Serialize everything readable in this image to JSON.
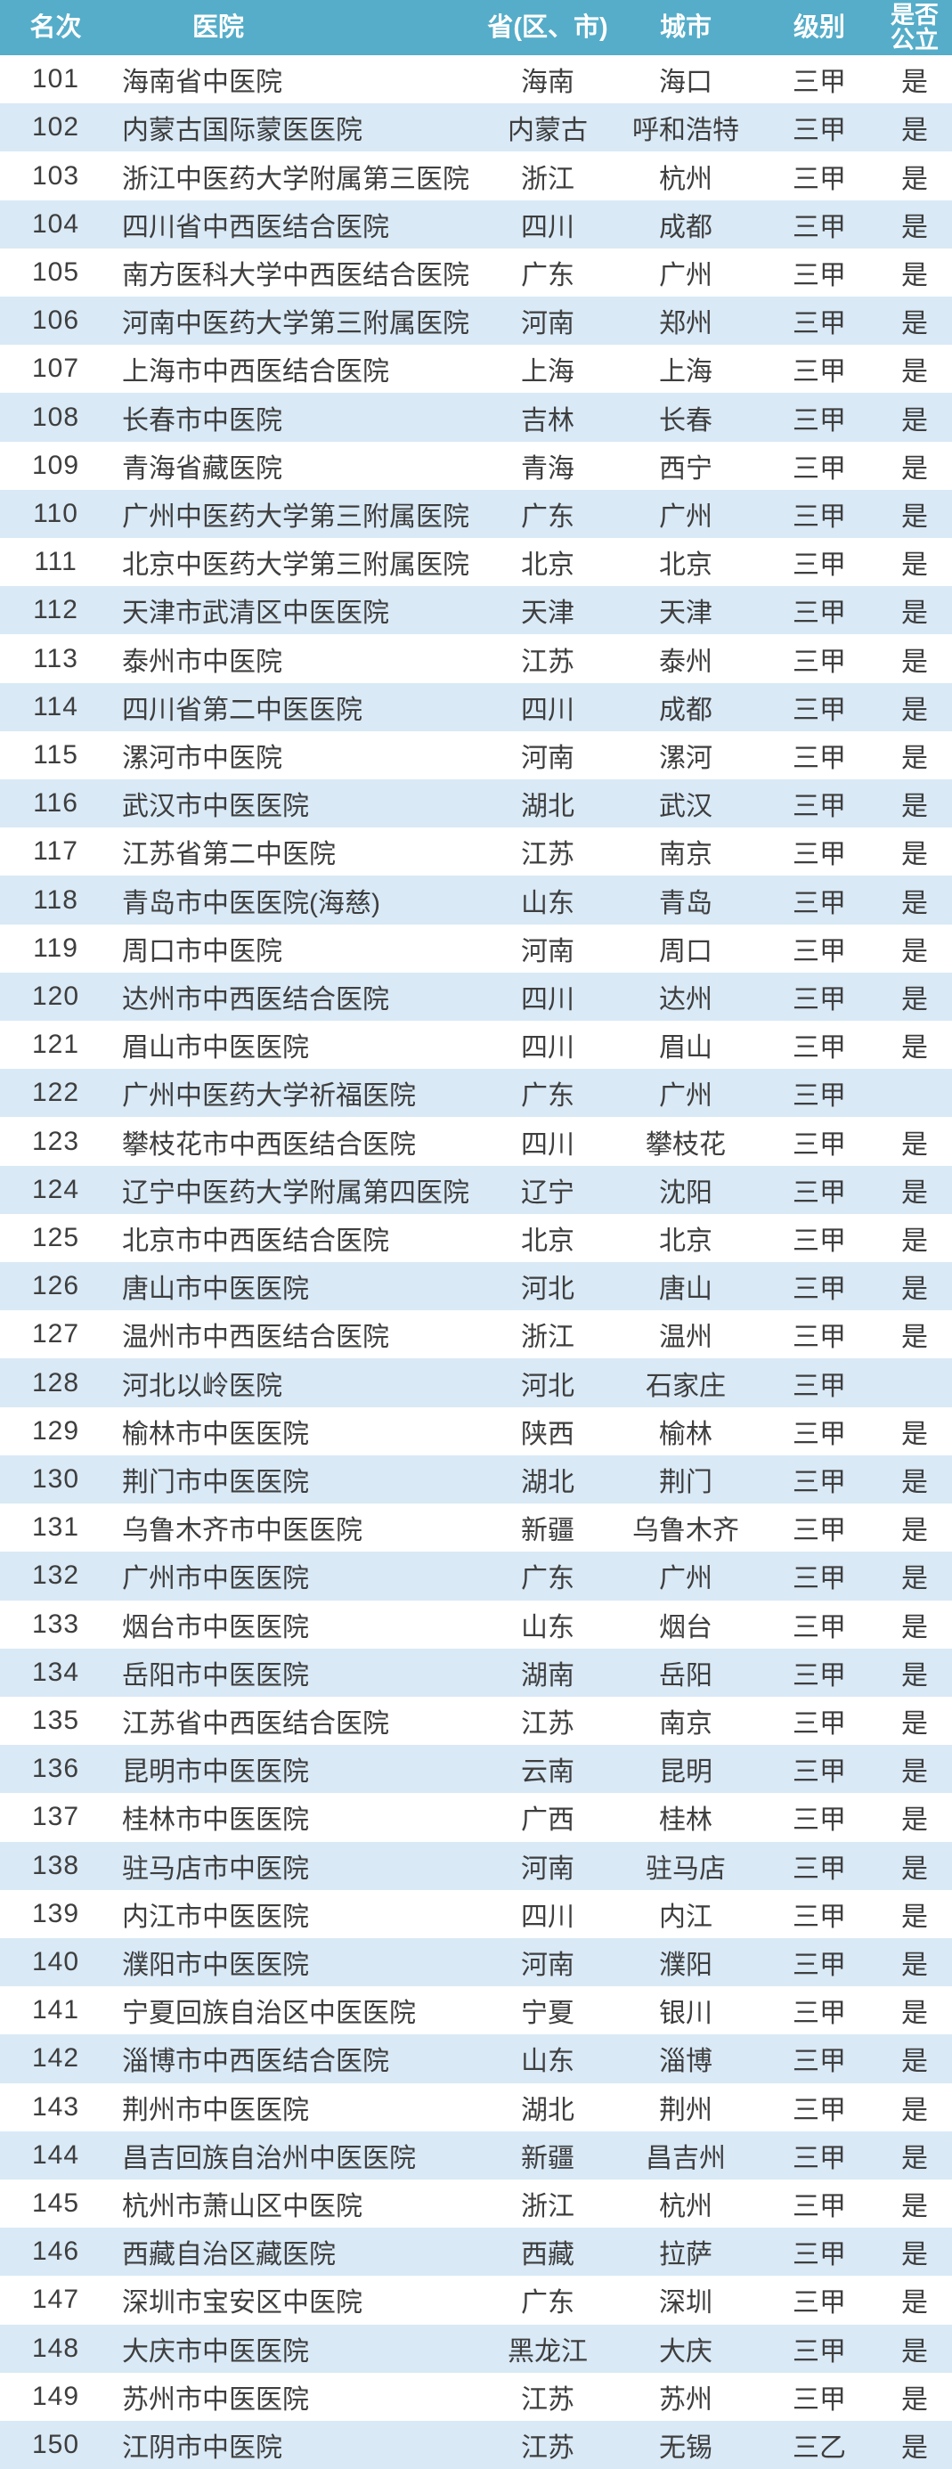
{
  "colors": {
    "header_bg": "#55adc9",
    "stripe_blue": "#d9e9f6",
    "row_white": "#ffffff",
    "header_text": "#ffffff",
    "body_text": "#3e3e3e"
  },
  "table": {
    "columns": [
      {
        "key": "rank",
        "label": "名次"
      },
      {
        "key": "hospital",
        "label": "医院"
      },
      {
        "key": "province",
        "label": "省(区、市)"
      },
      {
        "key": "city",
        "label": "城市"
      },
      {
        "key": "level",
        "label": "级别"
      },
      {
        "key": "public",
        "label": "是否公立"
      }
    ],
    "rows": [
      [
        "101",
        "海南省中医院",
        "海南",
        "海口",
        "三甲",
        "是"
      ],
      [
        "102",
        "内蒙古国际蒙医医院",
        "内蒙古",
        "呼和浩特",
        "三甲",
        "是"
      ],
      [
        "103",
        "浙江中医药大学附属第三医院",
        "浙江",
        "杭州",
        "三甲",
        "是"
      ],
      [
        "104",
        "四川省中西医结合医院",
        "四川",
        "成都",
        "三甲",
        "是"
      ],
      [
        "105",
        "南方医科大学中西医结合医院",
        "广东",
        "广州",
        "三甲",
        "是"
      ],
      [
        "106",
        "河南中医药大学第三附属医院",
        "河南",
        "郑州",
        "三甲",
        "是"
      ],
      [
        "107",
        "上海市中西医结合医院",
        "上海",
        "上海",
        "三甲",
        "是"
      ],
      [
        "108",
        "长春市中医院",
        "吉林",
        "长春",
        "三甲",
        "是"
      ],
      [
        "109",
        "青海省藏医院",
        "青海",
        "西宁",
        "三甲",
        "是"
      ],
      [
        "110",
        "广州中医药大学第三附属医院",
        "广东",
        "广州",
        "三甲",
        "是"
      ],
      [
        "111",
        "北京中医药大学第三附属医院",
        "北京",
        "北京",
        "三甲",
        "是"
      ],
      [
        "112",
        "天津市武清区中医医院",
        "天津",
        "天津",
        "三甲",
        "是"
      ],
      [
        "113",
        "泰州市中医院",
        "江苏",
        "泰州",
        "三甲",
        "是"
      ],
      [
        "114",
        "四川省第二中医医院",
        "四川",
        "成都",
        "三甲",
        "是"
      ],
      [
        "115",
        "漯河市中医院",
        "河南",
        "漯河",
        "三甲",
        "是"
      ],
      [
        "116",
        "武汉市中医医院",
        "湖北",
        "武汉",
        "三甲",
        "是"
      ],
      [
        "117",
        "江苏省第二中医院",
        "江苏",
        "南京",
        "三甲",
        "是"
      ],
      [
        "118",
        "青岛市中医医院(海慈)",
        "山东",
        "青岛",
        "三甲",
        "是"
      ],
      [
        "119",
        "周口市中医院",
        "河南",
        "周口",
        "三甲",
        "是"
      ],
      [
        "120",
        "达州市中西医结合医院",
        "四川",
        "达州",
        "三甲",
        "是"
      ],
      [
        "121",
        "眉山市中医医院",
        "四川",
        "眉山",
        "三甲",
        "是"
      ],
      [
        "122",
        "广州中医药大学祈福医院",
        "广东",
        "广州",
        "三甲",
        ""
      ],
      [
        "123",
        "攀枝花市中西医结合医院",
        "四川",
        "攀枝花",
        "三甲",
        "是"
      ],
      [
        "124",
        "辽宁中医药大学附属第四医院",
        "辽宁",
        "沈阳",
        "三甲",
        "是"
      ],
      [
        "125",
        "北京市中西医结合医院",
        "北京",
        "北京",
        "三甲",
        "是"
      ],
      [
        "126",
        "唐山市中医医院",
        "河北",
        "唐山",
        "三甲",
        "是"
      ],
      [
        "127",
        "温州市中西医结合医院",
        "浙江",
        "温州",
        "三甲",
        "是"
      ],
      [
        "128",
        "河北以岭医院",
        "河北",
        "石家庄",
        "三甲",
        ""
      ],
      [
        "129",
        "榆林市中医医院",
        "陕西",
        "榆林",
        "三甲",
        "是"
      ],
      [
        "130",
        "荆门市中医医院",
        "湖北",
        "荆门",
        "三甲",
        "是"
      ],
      [
        "131",
        "乌鲁木齐市中医医院",
        "新疆",
        "乌鲁木齐",
        "三甲",
        "是"
      ],
      [
        "132",
        "广州市中医医院",
        "广东",
        "广州",
        "三甲",
        "是"
      ],
      [
        "133",
        "烟台市中医医院",
        "山东",
        "烟台",
        "三甲",
        "是"
      ],
      [
        "134",
        "岳阳市中医医院",
        "湖南",
        "岳阳",
        "三甲",
        "是"
      ],
      [
        "135",
        "江苏省中西医结合医院",
        "江苏",
        "南京",
        "三甲",
        "是"
      ],
      [
        "136",
        "昆明市中医医院",
        "云南",
        "昆明",
        "三甲",
        "是"
      ],
      [
        "137",
        "桂林市中医医院",
        "广西",
        "桂林",
        "三甲",
        "是"
      ],
      [
        "138",
        "驻马店市中医院",
        "河南",
        "驻马店",
        "三甲",
        "是"
      ],
      [
        "139",
        "内江市中医医院",
        "四川",
        "内江",
        "三甲",
        "是"
      ],
      [
        "140",
        "濮阳市中医医院",
        "河南",
        "濮阳",
        "三甲",
        "是"
      ],
      [
        "141",
        "宁夏回族自治区中医医院",
        "宁夏",
        "银川",
        "三甲",
        "是"
      ],
      [
        "142",
        "淄博市中西医结合医院",
        "山东",
        "淄博",
        "三甲",
        "是"
      ],
      [
        "143",
        "荆州市中医医院",
        "湖北",
        "荆州",
        "三甲",
        "是"
      ],
      [
        "144",
        "昌吉回族自治州中医医院",
        "新疆",
        "昌吉州",
        "三甲",
        "是"
      ],
      [
        "145",
        "杭州市萧山区中医院",
        "浙江",
        "杭州",
        "三甲",
        "是"
      ],
      [
        "146",
        "西藏自治区藏医院",
        "西藏",
        "拉萨",
        "三甲",
        "是"
      ],
      [
        "147",
        "深圳市宝安区中医院",
        "广东",
        "深圳",
        "三甲",
        "是"
      ],
      [
        "148",
        "大庆市中医医院",
        "黑龙江",
        "大庆",
        "三甲",
        "是"
      ],
      [
        "149",
        "苏州市中医医院",
        "江苏",
        "苏州",
        "三甲",
        "是"
      ],
      [
        "150",
        "江阴市中医院",
        "江苏",
        "无锡",
        "三乙",
        "是"
      ]
    ]
  }
}
